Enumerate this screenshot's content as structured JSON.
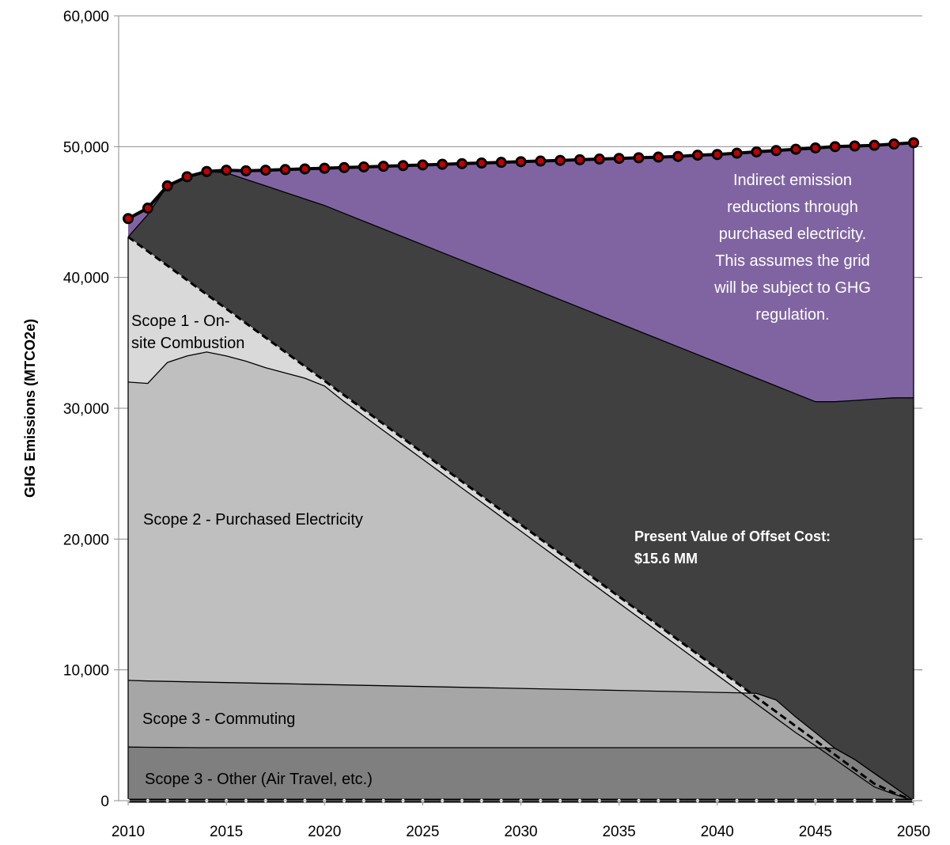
{
  "chart_data": {
    "type": "area",
    "xlabel": "",
    "ylabel": "GHG Emissions (MTCO2e)",
    "xlim": [
      2010,
      2050
    ],
    "ylim": [
      0,
      60000
    ],
    "x_ticks": [
      "2010",
      "2015",
      "2020",
      "2025",
      "2030",
      "2035",
      "2040",
      "2045",
      "2050"
    ],
    "y_ticks": [
      "0",
      "10,000",
      "20,000",
      "30,000",
      "40,000",
      "50,000",
      "60,000"
    ],
    "grid": "horizontal",
    "legend": "none",
    "colors": {
      "scope3_other": "#7f7f7f",
      "scope3_commuting": "#a6a6a6",
      "scope2": "#bfbfbf",
      "scope1": "#d9d9d9",
      "offset": "#404040",
      "indirect": "#8064a2",
      "marker_fill": "#c00000"
    },
    "x": [
      2010,
      2011,
      2012,
      2013,
      2014,
      2015,
      2016,
      2017,
      2018,
      2019,
      2020,
      2021,
      2022,
      2023,
      2024,
      2025,
      2026,
      2027,
      2028,
      2029,
      2030,
      2031,
      2032,
      2033,
      2034,
      2035,
      2036,
      2037,
      2038,
      2039,
      2040,
      2041,
      2042,
      2043,
      2044,
      2045,
      2046,
      2047,
      2048,
      2049,
      2050
    ],
    "series": [
      {
        "key": "scope3_other",
        "stack_top": [
          4100,
          4080,
          4070,
          4060,
          4050,
          4050,
          4050,
          4050,
          4050,
          4050,
          4050,
          4050,
          4050,
          4050,
          4050,
          4050,
          4050,
          4050,
          4050,
          4050,
          4050,
          4050,
          4050,
          4050,
          4050,
          4050,
          4050,
          4050,
          4050,
          4050,
          4050,
          4050,
          4050,
          4050,
          4050,
          4050,
          4000,
          3150,
          2100,
          1050,
          0
        ]
      },
      {
        "key": "scope3_commuting",
        "stack_top": [
          9200,
          9150,
          9120,
          9090,
          9060,
          9030,
          9000,
          8970,
          8940,
          8910,
          8880,
          8850,
          8820,
          8790,
          8760,
          8730,
          8700,
          8670,
          8640,
          8610,
          8580,
          8550,
          8520,
          8490,
          8460,
          8430,
          8400,
          8370,
          8340,
          8310,
          8280,
          8250,
          8200,
          7700,
          6400,
          5200,
          4000,
          3150,
          2100,
          1050,
          0
        ]
      },
      {
        "key": "scope2",
        "stack_top": [
          32000,
          31900,
          33500,
          34000,
          34300,
          34000,
          33600,
          33100,
          32700,
          32300,
          31700,
          30500,
          29400,
          28300,
          27200,
          26100,
          25000,
          23900,
          22800,
          21700,
          20600,
          19500,
          18400,
          17300,
          16200,
          15100,
          14000,
          12900,
          11800,
          10700,
          9600,
          8500,
          7400,
          6300,
          5200,
          4200,
          3150,
          2100,
          1050,
          500,
          0
        ]
      },
      {
        "key": "scope1",
        "stack_top": [
          43100,
          42000,
          40900,
          39800,
          38700,
          37600,
          36500,
          35400,
          34300,
          33200,
          32100,
          31000,
          29900,
          28800,
          27700,
          26600,
          25500,
          24400,
          23300,
          22200,
          21100,
          20000,
          18900,
          17800,
          16700,
          15600,
          14500,
          13400,
          12300,
          11200,
          10100,
          9000,
          7900,
          6800,
          5700,
          4600,
          3500,
          2400,
          1300,
          600,
          0
        ]
      },
      {
        "key": "offset",
        "stack_top": [
          43100,
          44800,
          47000,
          47800,
          48100,
          48000,
          47500,
          47000,
          46500,
          46000,
          45500,
          44900,
          44300,
          43700,
          43100,
          42500,
          41900,
          41300,
          40700,
          40100,
          39500,
          38900,
          38300,
          37700,
          37100,
          36500,
          35900,
          35300,
          34700,
          34100,
          33500,
          32900,
          32300,
          31700,
          31100,
          30500,
          30500,
          30600,
          30700,
          30800,
          30800
        ]
      },
      {
        "key": "total_with_markers",
        "values": [
          44500,
          45300,
          47000,
          47700,
          48100,
          48200,
          48150,
          48200,
          48250,
          48300,
          48350,
          48400,
          48450,
          48500,
          48550,
          48600,
          48650,
          48700,
          48750,
          48800,
          48850,
          48900,
          48950,
          49000,
          49050,
          49100,
          49150,
          49200,
          49250,
          49350,
          49400,
          49500,
          49600,
          49700,
          49800,
          49900,
          50000,
          50050,
          50100,
          50200,
          50300
        ]
      }
    ],
    "labels": {
      "scope3_other": "Scope 3 - Other (Air Travel, etc.)",
      "scope3_commuting": "Scope 3 - Commuting",
      "scope2": "Scope 2 - Purchased Electricity",
      "scope1_line1": "Scope 1 - On-",
      "scope1_line2": "site Combustion",
      "indirect": [
        "Indirect emission",
        "reductions through",
        "purchased electricity.",
        "This assumes the grid",
        "will be subject to GHG",
        "regulation."
      ],
      "offset_line1": "Present Value of Offset Cost:",
      "offset_line2": "$15.6 MM"
    }
  }
}
